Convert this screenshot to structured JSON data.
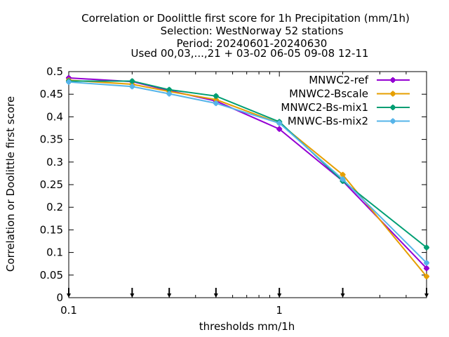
{
  "chart_data": {
    "type": "line",
    "title_lines": [
      "Correlation or Doolittle first score  for 1h Precipitation (mm/1h)",
      "Selection: WestNorway     52 stations",
      "Period: 20240601-20240630",
      "Used 00,03,...,21 + 03-02 06-05 09-08 12-11"
    ],
    "xlabel": "thresholds mm/1h",
    "ylabel": "Correlation or Doolittle first score",
    "x_scale": "log",
    "xlim": [
      0.1,
      5
    ],
    "ylim": [
      0,
      0.5
    ],
    "x_ticks": [
      0.1,
      1
    ],
    "x_tick_labels": [
      "0.1",
      "1"
    ],
    "y_ticks": [
      0,
      0.05,
      0.1,
      0.15,
      0.2,
      0.25,
      0.3,
      0.35,
      0.4,
      0.45,
      0.5
    ],
    "y_tick_labels": [
      "0",
      "0.05",
      "0.1",
      "0.15",
      "0.2",
      "0.25",
      "0.3",
      "0.35",
      "0.4",
      "0.45",
      "0.5"
    ],
    "grid": false,
    "legend_position": "top-right",
    "x": [
      0.1,
      0.2,
      0.3,
      0.5,
      1,
      2,
      5
    ],
    "arrow_markers_x": [
      0.1,
      0.2,
      0.3,
      0.5,
      1,
      2,
      5
    ],
    "series": [
      {
        "name": "MNWC2-ref",
        "color": "#9400d3",
        "values": [
          0.486,
          0.478,
          0.458,
          0.435,
          0.373,
          0.258,
          0.065
        ]
      },
      {
        "name": "MNWC2-Bscale",
        "color": "#e69f00",
        "values": [
          0.481,
          0.472,
          0.456,
          0.438,
          0.386,
          0.272,
          0.047
        ]
      },
      {
        "name": "MNWC2-Bs-mix1",
        "color": "#009e73",
        "values": [
          0.479,
          0.479,
          0.46,
          0.446,
          0.389,
          0.258,
          0.111
        ]
      },
      {
        "name": "MNWC-Bs-mix2",
        "color": "#56b4e9",
        "values": [
          0.477,
          0.467,
          0.451,
          0.43,
          0.386,
          0.262,
          0.077
        ]
      }
    ]
  }
}
